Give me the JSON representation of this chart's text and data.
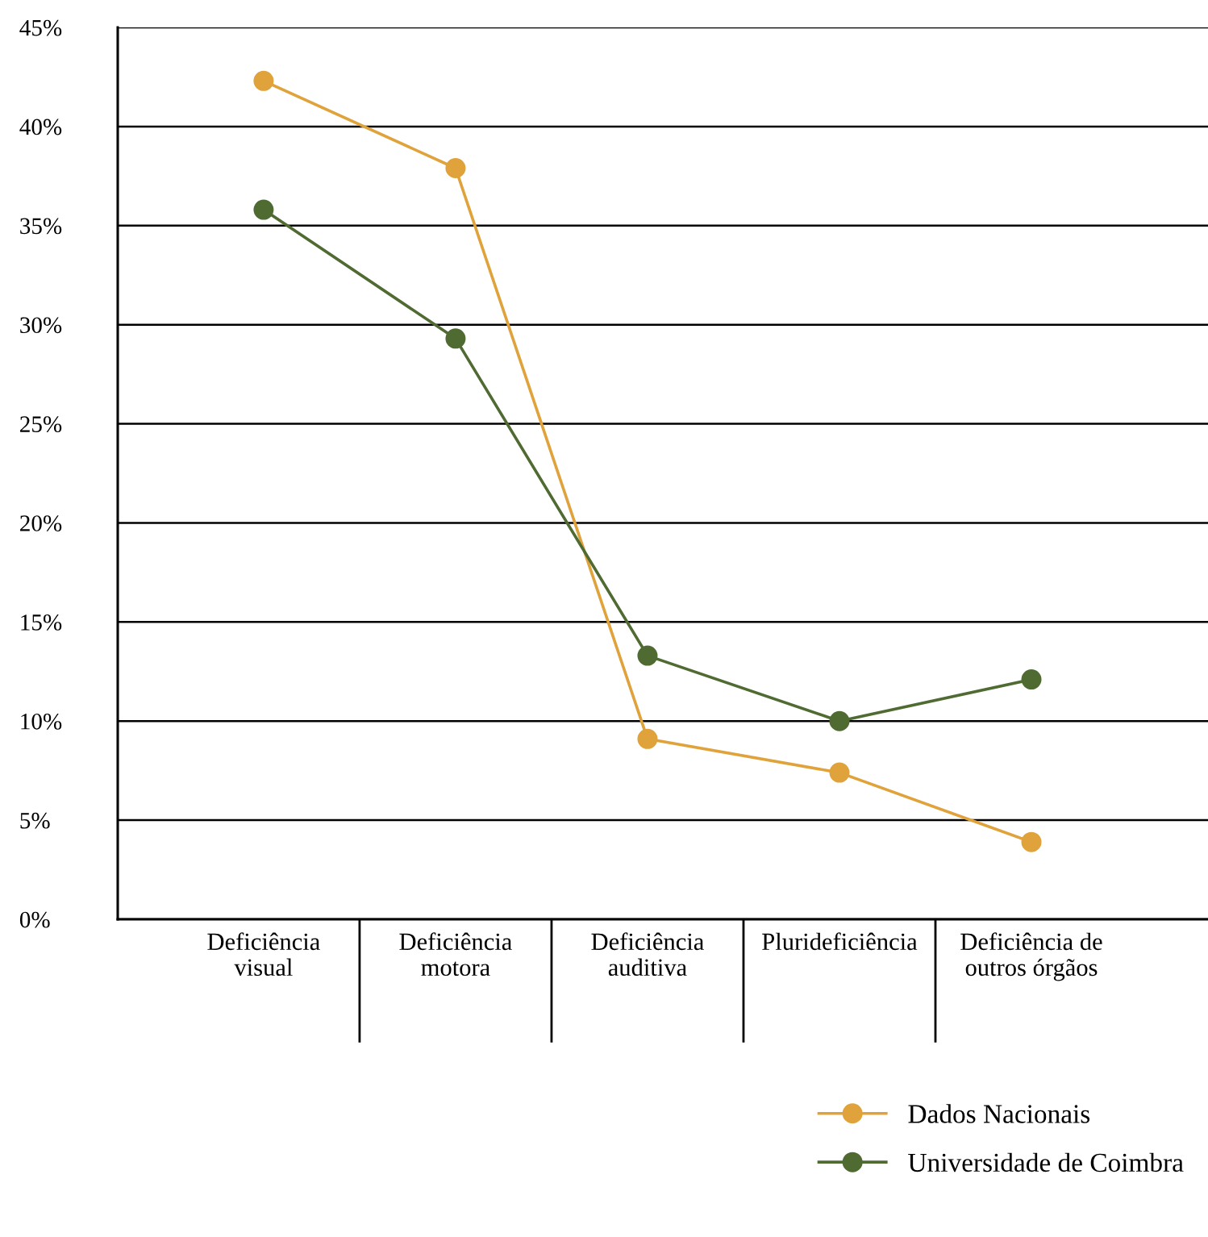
{
  "chart_data": {
    "type": "line",
    "categories": [
      "Deficiência\nvisual",
      "Deficiência\nmotora",
      "Deficiência\nauditiva",
      "Plurideficiência",
      "Deficiência de\noutros órgãos"
    ],
    "series": [
      {
        "name": "Dados Nacionais",
        "color": "#e0a23a",
        "values": [
          42.3,
          37.9,
          9.1,
          7.4,
          3.9
        ]
      },
      {
        "name": "Universidade de Coimbra",
        "color": "#4f6b32",
        "values": [
          35.8,
          29.3,
          13.3,
          10.0,
          12.1
        ]
      }
    ],
    "ylim": [
      0,
      45
    ],
    "yticks": [
      {
        "value": 0,
        "label": "0%"
      },
      {
        "value": 5,
        "label": "5%"
      },
      {
        "value": 10,
        "label": "10%"
      },
      {
        "value": 15,
        "label": "15%"
      },
      {
        "value": 20,
        "label": "20%"
      },
      {
        "value": 25,
        "label": "25%"
      },
      {
        "value": 30,
        "label": "30%"
      },
      {
        "value": 35,
        "label": "35%"
      },
      {
        "value": 40,
        "label": "40%"
      },
      {
        "value": 45,
        "label": "45%"
      }
    ],
    "grid": "y",
    "legend": "bottom right",
    "marker": "circle",
    "line_style": "solid"
  }
}
